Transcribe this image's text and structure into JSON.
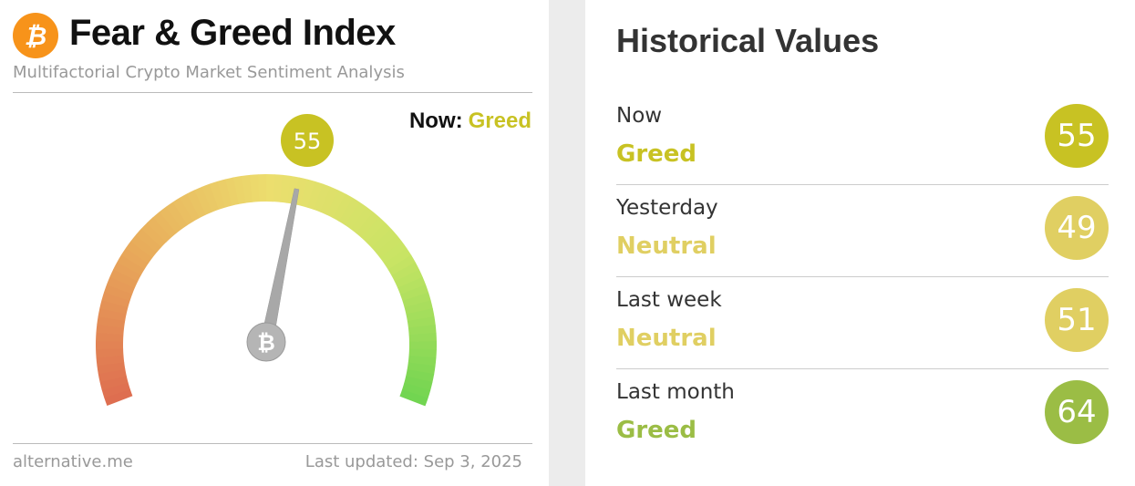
{
  "header": {
    "title": "Fear & Greed Index",
    "subtitle": "Multifactorial Crypto Market Sentiment Analysis",
    "logo_icon": "bitcoin-icon"
  },
  "gauge": {
    "value": 55,
    "min": 0,
    "max": 100,
    "now_label": "Now:",
    "now_class": "Greed",
    "now_color": "#c8c223"
  },
  "footer": {
    "source": "alternative.me",
    "updated": "Last updated: Sep 3, 2025"
  },
  "historical": {
    "title": "Historical Values",
    "rows": [
      {
        "label": "Now",
        "class": "Greed",
        "value": "55",
        "color": "#c8c223"
      },
      {
        "label": "Yesterday",
        "class": "Neutral",
        "value": "49",
        "color": "#e0cf62"
      },
      {
        "label": "Last week",
        "class": "Neutral",
        "value": "51",
        "color": "#e0cf62"
      },
      {
        "label": "Last month",
        "class": "Greed",
        "value": "64",
        "color": "#9bbd45"
      }
    ]
  }
}
